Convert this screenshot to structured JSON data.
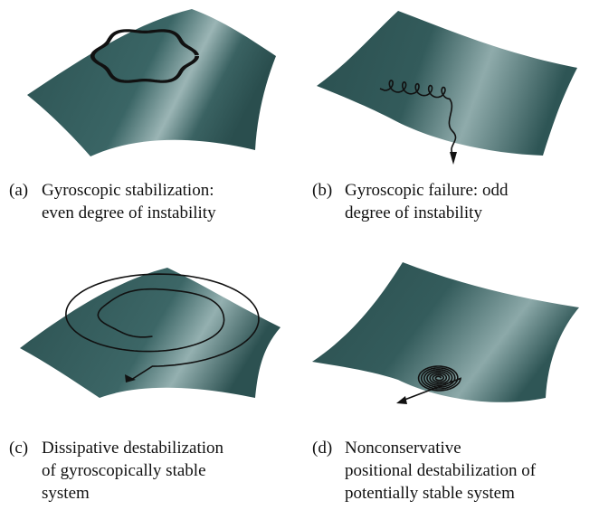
{
  "panels": [
    {
      "label": "(a)",
      "caption_lines": [
        "Gyroscopic stabilization:",
        "even degree of instability"
      ]
    },
    {
      "label": "(b)",
      "caption_lines": [
        "Gyroscopic failure: odd",
        "degree of instability"
      ]
    },
    {
      "label": "(c)",
      "caption_lines": [
        "Dissipative destabilization",
        "of gyroscopically stable",
        "system"
      ]
    },
    {
      "label": "(d)",
      "caption_lines": [
        "Nonconservative",
        "positional destabilization of",
        "potentially stable system"
      ]
    }
  ]
}
